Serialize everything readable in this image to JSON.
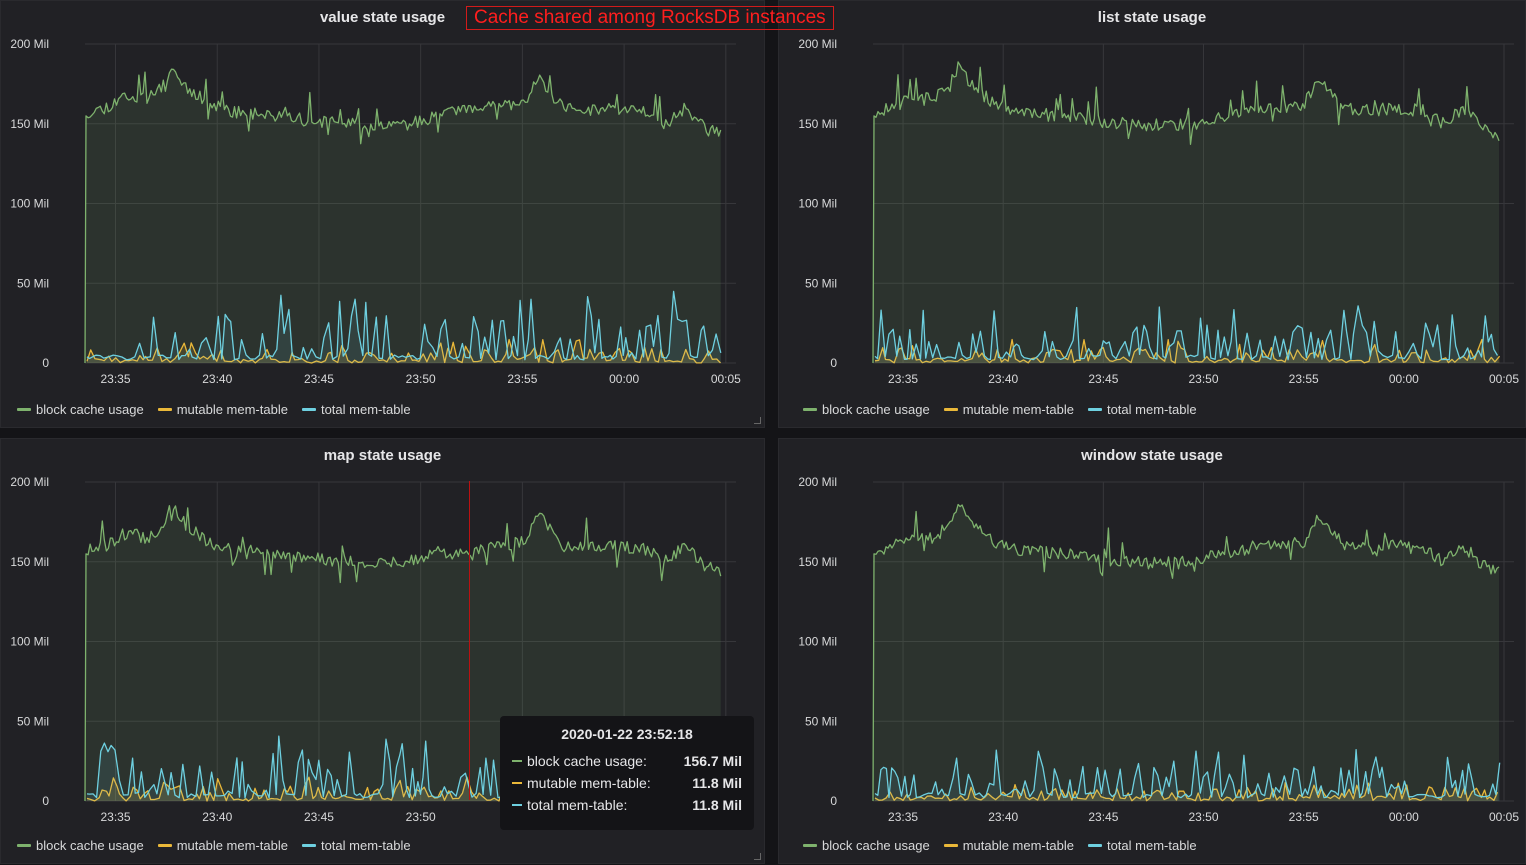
{
  "annotation": {
    "text": "Cache shared among RocksDB instances"
  },
  "legend": {
    "block": "block cache usage",
    "mutable": "mutable mem-table",
    "total": "total mem-table"
  },
  "colors": {
    "block": "#7eb26d",
    "mutable": "#eab839",
    "total": "#6ed0e0"
  },
  "tooltip": {
    "time": "2020-01-22 23:52:18",
    "rows": [
      {
        "label": "block cache usage:",
        "value": "156.7 Mil"
      },
      {
        "label": "mutable mem-table:",
        "value": "11.8 Mil"
      },
      {
        "label": "total mem-table:",
        "value": "11.8 Mil"
      }
    ]
  },
  "panels": [
    {
      "title": "value state usage"
    },
    {
      "title": "list state usage"
    },
    {
      "title": "map state usage"
    },
    {
      "title": "window state usage"
    }
  ],
  "chart_data": [
    {
      "type": "area",
      "title": "value state usage",
      "xlabel": "",
      "ylabel": "",
      "ylim": [
        0,
        200
      ],
      "y_ticks": [
        "0",
        "50 Mil",
        "100 Mil",
        "150 Mil",
        "200 Mil"
      ],
      "x_ticks": [
        "23:35",
        "23:40",
        "23:45",
        "23:50",
        "23:55",
        "00:00",
        "00:05"
      ],
      "x_range_minutes": [
        33.5,
        65.5
      ],
      "grid": true,
      "legend_placement": "bottom-left",
      "series": [
        {
          "name": "block cache usage",
          "start_min": 33.5,
          "end_min": 64.8,
          "seed": 11,
          "anchors": [
            [
              33.6,
              157
            ],
            [
              34.5,
              160
            ],
            [
              35.5,
              168
            ],
            [
              36.5,
              165
            ],
            [
              37.2,
              172
            ],
            [
              37.8,
              186
            ],
            [
              38.3,
              175
            ],
            [
              39.5,
              163
            ],
            [
              40.5,
              158
            ],
            [
              42,
              156
            ],
            [
              44,
              153
            ],
            [
              46,
              150
            ],
            [
              48,
              149
            ],
            [
              49.5,
              150
            ],
            [
              51,
              155
            ],
            [
              52,
              158
            ],
            [
              53.5,
              160
            ],
            [
              55,
              162
            ],
            [
              55.8,
              178
            ],
            [
              57,
              160
            ],
            [
              58,
              158
            ],
            [
              59.5,
              160
            ],
            [
              61,
              158
            ],
            [
              62,
              150
            ],
            [
              63,
              160
            ],
            [
              64,
              147
            ],
            [
              64.8,
              143
            ]
          ]
        },
        {
          "name": "mutable mem-table",
          "start_min": 33.6,
          "end_min": 64.8,
          "seed": 23,
          "low": 0,
          "high": 10
        },
        {
          "name": "total mem-table",
          "start_min": 33.6,
          "end_min": 64.8,
          "seed": 37,
          "low": 2,
          "high": 30
        }
      ]
    },
    {
      "type": "area",
      "title": "list state usage",
      "xlabel": "",
      "ylabel": "",
      "ylim": [
        0,
        200
      ],
      "y_ticks": [
        "0",
        "50 Mil",
        "100 Mil",
        "150 Mil",
        "200 Mil"
      ],
      "x_ticks": [
        "23:35",
        "23:40",
        "23:45",
        "23:50",
        "23:55",
        "00:00",
        "00:05"
      ],
      "x_range_minutes": [
        33.5,
        65.5
      ],
      "grid": true,
      "legend_placement": "bottom-left",
      "series": [
        {
          "name": "block cache usage",
          "start_min": 33.5,
          "end_min": 64.8,
          "seed": 12,
          "anchors": [
            [
              33.6,
              157
            ],
            [
              34.5,
              160
            ],
            [
              35.5,
              168
            ],
            [
              36.5,
              165
            ],
            [
              37.2,
              172
            ],
            [
              37.8,
              186
            ],
            [
              38.3,
              175
            ],
            [
              39.5,
              163
            ],
            [
              40.5,
              158
            ],
            [
              42,
              156
            ],
            [
              44,
              153
            ],
            [
              46,
              150
            ],
            [
              48,
              149
            ],
            [
              49.5,
              150
            ],
            [
              51,
              155
            ],
            [
              52,
              158
            ],
            [
              53.5,
              160
            ],
            [
              55,
              162
            ],
            [
              55.8,
              178
            ],
            [
              57,
              160
            ],
            [
              58,
              158
            ],
            [
              59.5,
              160
            ],
            [
              61,
              158
            ],
            [
              62,
              150
            ],
            [
              63,
              160
            ],
            [
              64,
              147
            ],
            [
              64.8,
              143
            ]
          ]
        },
        {
          "name": "mutable mem-table",
          "start_min": 33.6,
          "end_min": 64.8,
          "seed": 24,
          "low": 0,
          "high": 10
        },
        {
          "name": "total mem-table",
          "start_min": 33.6,
          "end_min": 64.8,
          "seed": 38,
          "low": 2,
          "high": 24
        }
      ]
    },
    {
      "type": "area",
      "title": "map state usage",
      "xlabel": "",
      "ylabel": "",
      "ylim": [
        0,
        200
      ],
      "y_ticks": [
        "0",
        "50 Mil",
        "100 Mil",
        "150 Mil",
        "200 Mil"
      ],
      "x_ticks": [
        "23:35",
        "23:40",
        "23:45",
        "23:50",
        "23:55",
        "00:00",
        "00:05"
      ],
      "x_range_minutes": [
        33.5,
        65.5
      ],
      "grid": true,
      "legend_placement": "bottom-left",
      "series": [
        {
          "name": "block cache usage",
          "start_min": 33.5,
          "end_min": 64.8,
          "seed": 13,
          "anchors": [
            [
              33.6,
              157
            ],
            [
              34.5,
              160
            ],
            [
              35.5,
              168
            ],
            [
              36.5,
              165
            ],
            [
              37.2,
              170
            ],
            [
              37.8,
              186
            ],
            [
              38.3,
              175
            ],
            [
              39.5,
              163
            ],
            [
              40.5,
              158
            ],
            [
              42,
              156
            ],
            [
              44,
              153
            ],
            [
              46,
              150
            ],
            [
              48,
              150
            ],
            [
              49.5,
              151
            ],
            [
              51,
              155
            ],
            [
              52.3,
              156.7
            ],
            [
              53.5,
              160
            ],
            [
              55,
              162
            ],
            [
              55.8,
              180
            ],
            [
              57,
              160
            ],
            [
              58,
              158
            ],
            [
              59.5,
              160
            ],
            [
              61,
              158
            ],
            [
              62,
              150
            ],
            [
              63,
              160
            ],
            [
              64,
              147
            ],
            [
              64.8,
              143
            ]
          ]
        },
        {
          "name": "mutable mem-table",
          "start_min": 33.6,
          "end_min": 64.8,
          "seed": 25,
          "low": 0,
          "high": 10
        },
        {
          "name": "total mem-table",
          "start_min": 33.6,
          "end_min": 64.8,
          "seed": 39,
          "low": 2,
          "high": 28
        }
      ]
    },
    {
      "type": "area",
      "title": "window state usage",
      "xlabel": "",
      "ylabel": "",
      "ylim": [
        0,
        200
      ],
      "y_ticks": [
        "0",
        "50 Mil",
        "100 Mil",
        "150 Mil",
        "200 Mil"
      ],
      "x_ticks": [
        "23:35",
        "23:40",
        "23:45",
        "23:50",
        "23:55",
        "00:00",
        "00:05"
      ],
      "x_range_minutes": [
        33.5,
        65.5
      ],
      "grid": true,
      "legend_placement": "bottom-left",
      "series": [
        {
          "name": "block cache usage",
          "start_min": 33.5,
          "end_min": 64.8,
          "seed": 14,
          "anchors": [
            [
              33.6,
              157
            ],
            [
              34.5,
              160
            ],
            [
              35.5,
              168
            ],
            [
              36.5,
              165
            ],
            [
              37.2,
              172
            ],
            [
              37.8,
              186
            ],
            [
              38.3,
              175
            ],
            [
              39.5,
              163
            ],
            [
              40.5,
              158
            ],
            [
              42,
              156
            ],
            [
              44,
              153
            ],
            [
              46,
              150
            ],
            [
              48,
              149
            ],
            [
              49.5,
              150
            ],
            [
              51,
              155
            ],
            [
              52,
              158
            ],
            [
              53.5,
              160
            ],
            [
              55,
              162
            ],
            [
              55.8,
              180
            ],
            [
              57,
              160
            ],
            [
              58,
              158
            ],
            [
              59.5,
              160
            ],
            [
              61,
              158
            ],
            [
              62,
              150
            ],
            [
              63,
              160
            ],
            [
              64,
              147
            ],
            [
              64.8,
              143
            ]
          ]
        },
        {
          "name": "mutable mem-table",
          "start_min": 33.6,
          "end_min": 64.8,
          "seed": 26,
          "low": 0,
          "high": 8
        },
        {
          "name": "total mem-table",
          "start_min": 33.6,
          "end_min": 64.8,
          "seed": 40,
          "low": 2,
          "high": 22
        }
      ]
    }
  ]
}
